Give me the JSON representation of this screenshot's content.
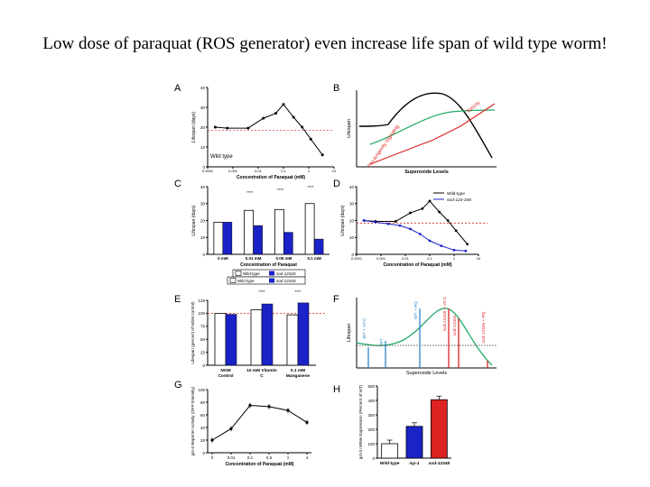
{
  "title": "Low dose of paraquat  (ROS generator) even increase life span of wild type worm!",
  "colors": {
    "wt": "#000000",
    "mutant": "#1a22c8",
    "red": "#dd2222",
    "green": "#22aa66",
    "blue": "#2e86c8"
  },
  "chart_data": [
    {
      "panel": "A",
      "type": "line",
      "title": "",
      "xlabel": "Concentration of Paraquat (mM)",
      "ylabel": "Lifespan (days)",
      "xticks": [
        "0.0001",
        "0.001",
        "0.01",
        "0.1",
        "1",
        "10"
      ],
      "yticks": [
        "0",
        "10",
        "20",
        "30",
        "40"
      ],
      "ylim": [
        0,
        40
      ],
      "legend": "Wild type",
      "series": [
        {
          "name": "Wild type",
          "x": [
            0.0002,
            0.0006,
            0.004,
            0.016,
            0.05,
            0.1,
            0.25,
            0.55,
            1.2,
            3.5
          ],
          "values": [
            20,
            19.5,
            19.5,
            24.5,
            27,
            31.5,
            25,
            20,
            14,
            6
          ]
        }
      ],
      "reference_line": 18.5
    },
    {
      "panel": "B",
      "type": "line",
      "xlabel": "Superoxide Levels",
      "ylabel": "Lifespan",
      "series": [
        {
          "name": "Lifespan",
          "color": "black"
        },
        {
          "name": "Pro-longevity",
          "color": "green",
          "label": "Pro-longevity Signaling"
        },
        {
          "name": "Toxicity",
          "color": "red",
          "label": "Toxicity"
        }
      ]
    },
    {
      "panel": "C",
      "type": "bar",
      "categories": [
        "0 mM",
        "0.01 mM",
        "0.05 mM",
        "0.1 mM"
      ],
      "xlabel": "Concentration of Paraquat",
      "ylabel": "Lifespan (days)",
      "yticks": [
        "0",
        "10",
        "20",
        "30",
        "40"
      ],
      "ylim": [
        0,
        40
      ],
      "significance": [
        "****",
        "****",
        "****"
      ],
      "series": [
        {
          "name": "Wild-type",
          "values": [
            19,
            26,
            26.5,
            30
          ]
        },
        {
          "name": "sod-1234S",
          "values": [
            19,
            17,
            13,
            9
          ]
        }
      ]
    },
    {
      "panel": "D",
      "type": "line",
      "xlabel": "Concentration of Paraquat (mM)",
      "ylabel": "Lifespan (days)",
      "xticks": [
        "0.0001",
        "0.001",
        "0.01",
        "0.1",
        "1",
        "10"
      ],
      "yticks": [
        "0",
        "10",
        "20",
        "30",
        "40"
      ],
      "ylim": [
        0,
        40
      ],
      "series": [
        {
          "name": "Wild-type",
          "x": [
            0.0002,
            0.0006,
            0.004,
            0.016,
            0.05,
            0.1,
            0.25,
            0.55,
            1.2,
            3.5
          ],
          "values": [
            20,
            19.5,
            19.5,
            24.5,
            27,
            31.5,
            25,
            20,
            14,
            6
          ]
        },
        {
          "name": "sod-123-345",
          "x": [
            0.0002,
            0.0006,
            0.002,
            0.006,
            0.016,
            0.04,
            0.1,
            0.3,
            1,
            3
          ],
          "values": [
            20,
            19,
            18,
            17,
            15,
            12,
            8,
            5,
            2.5,
            2
          ]
        }
      ],
      "reference_line": 18.5
    },
    {
      "panel": "E",
      "type": "bar",
      "categories": [
        "NGM Control",
        "10 mM Vitamin C",
        "0.1 mM Manganese"
      ],
      "ylabel": "Lifespan (percent of NGM control)",
      "yticks": [
        "0",
        "25",
        "50",
        "75",
        "100",
        "125"
      ],
      "ylim": [
        0,
        125
      ],
      "significance": [
        "****",
        "****"
      ],
      "series": [
        {
          "name": "Wild type",
          "values": [
            100,
            107,
            97
          ]
        },
        {
          "name": "sod-1234S",
          "values": [
            98,
            118,
            120
          ]
        }
      ],
      "reference_line": 100
    },
    {
      "panel": "F",
      "type": "line",
      "xlabel": "Superoxide Levels",
      "ylabel": "Lifespan",
      "labels": [
        "WT + Vit C",
        "WT",
        "WT + PQ",
        "sod-12345 + Vit C",
        "sod-12345",
        "sod-12345 + PQ"
      ]
    },
    {
      "panel": "G",
      "type": "line",
      "xlabel": "Concentration of Paraquat (mM)",
      "ylabel": "gst-4 Reporter Activity (GFP intensity)",
      "categories": [
        "0",
        "0.01",
        "0.1",
        "0.5",
        "1",
        "4"
      ],
      "yticks": [
        "0",
        "20",
        "40",
        "60",
        "80",
        "100"
      ],
      "ylim": [
        0,
        100
      ],
      "series": [
        {
          "name": "gst-4",
          "values": [
            20,
            38,
            75,
            73,
            67,
            48
          ]
        }
      ]
    },
    {
      "panel": "H",
      "type": "bar",
      "categories": [
        "Wild-type",
        "isp-1",
        "sod-12345"
      ],
      "ylabel": "gst-4 mRNA Expression (Percent of WT)",
      "yticks": [
        "0",
        "100",
        "200",
        "300",
        "400",
        "500"
      ],
      "ylim": [
        0,
        500
      ],
      "values": [
        100,
        220,
        405
      ],
      "colors": [
        "white",
        "blue",
        "red"
      ]
    }
  ]
}
